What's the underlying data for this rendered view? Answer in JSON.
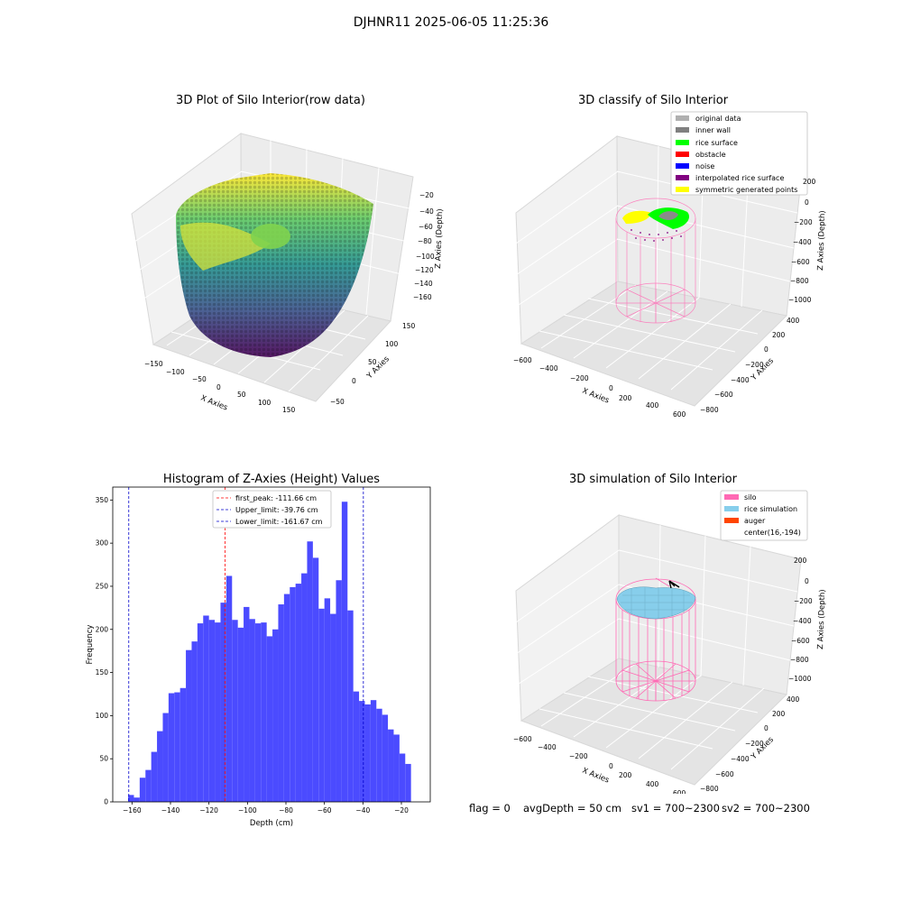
{
  "figure_title": "DJHNR11 2025-06-05 11:25:36",
  "footer": {
    "flag": "flag = 0",
    "avg_depth": "avgDepth = 50 cm",
    "sv1": "sv1 = 700~2300",
    "sv2": "sv2 = 700~2300"
  },
  "colors": {
    "histogram_bar": "#4b4bff",
    "silo": "#ff69b4",
    "rice_simulation": "#87ceeb",
    "rice_surface": "#00ff00",
    "symmetric": "#ffff00"
  },
  "chart_data": [
    {
      "type": "scatter3d",
      "title": "3D Plot of Silo Interior(row data)",
      "xlabel": "X Axies",
      "ylabel": "Y Axies",
      "zlabel": "Z Axies (Depth)",
      "xticks": [
        "−150",
        "−100",
        "−50",
        "0",
        "50",
        "100",
        "150"
      ],
      "yticks": [
        "−50",
        "0",
        "50",
        "100",
        "150"
      ],
      "zticks": [
        "−20",
        "−40",
        "−60",
        "−80",
        "−100",
        "−120",
        "−140",
        "−160"
      ],
      "colormap": "viridis"
    },
    {
      "type": "scatter3d",
      "title": "3D classify of Silo Interior",
      "xlabel": "X Axies",
      "ylabel": "Y Axies",
      "zlabel": "Z Axies (Depth)",
      "xticks": [
        "−600",
        "−400",
        "−200",
        "0",
        "200",
        "400",
        "600"
      ],
      "yticks": [
        "−800",
        "−600",
        "−400",
        "−200",
        "0",
        "200",
        "400"
      ],
      "zticks": [
        "200",
        "0",
        "−200",
        "−400",
        "−600",
        "−800",
        "−1000"
      ],
      "legend": [
        {
          "label": "original data",
          "color": "#b0b0b0"
        },
        {
          "label": "inner wall",
          "color": "#808080"
        },
        {
          "label": "rice surface",
          "color": "#00ff00"
        },
        {
          "label": "obstacle",
          "color": "#ff0000"
        },
        {
          "label": "noise",
          "color": "#0000ff"
        },
        {
          "label": "interpolated rice surface",
          "color": "#800080"
        },
        {
          "label": "symmetric generated points",
          "color": "#ffff00"
        }
      ],
      "legend_position": "top-right"
    },
    {
      "type": "bar",
      "title": "Histogram of Z-Axies (Height) Values",
      "xlabel": "Depth (cm)",
      "ylabel": "Frequency",
      "xlim": [
        -170,
        -5
      ],
      "ylim": [
        0,
        365
      ],
      "xticks": [
        -160,
        -140,
        -120,
        -100,
        -80,
        -60,
        -40,
        -20
      ],
      "yticks": [
        0,
        50,
        100,
        150,
        200,
        250,
        300,
        350
      ],
      "bin_start": -162,
      "bin_width": 3,
      "values": [
        8,
        5,
        28,
        37,
        58,
        82,
        103,
        126,
        127,
        132,
        176,
        186,
        207,
        216,
        211,
        208,
        231,
        262,
        211,
        202,
        226,
        212,
        207,
        208,
        192,
        200,
        229,
        241,
        249,
        253,
        265,
        302,
        283,
        224,
        236,
        218,
        257,
        348,
        222,
        128,
        117,
        113,
        118,
        108,
        101,
        84,
        78,
        56,
        44
      ],
      "vlines": [
        {
          "label": "first_peak: -111.66 cm",
          "x": -111.66,
          "color": "#ff0000"
        },
        {
          "label": "Upper_limit: -39.76 cm",
          "x": -39.76,
          "color": "#0000cc"
        },
        {
          "label": "Lower_limit: -161.67 cm",
          "x": -161.67,
          "color": "#0000cc"
        }
      ],
      "legend_position": "top-center"
    },
    {
      "type": "surface3d",
      "title": "3D simulation of Silo Interior",
      "xlabel": "X Axies",
      "ylabel": "Y Axies",
      "zlabel": "Z Axies (Depth)",
      "xticks": [
        "−600",
        "−400",
        "−200",
        "0",
        "200",
        "400",
        "600"
      ],
      "yticks": [
        "−800",
        "−600",
        "−400",
        "−200",
        "0",
        "200",
        "400"
      ],
      "zticks": [
        "200",
        "0",
        "−200",
        "−400",
        "−600",
        "−800",
        "−1000"
      ],
      "legend": [
        {
          "label": "silo",
          "color": "#ff69b4"
        },
        {
          "label": "rice simulation",
          "color": "#87ceeb"
        },
        {
          "label": "auger",
          "color": "#ff4500"
        },
        {
          "label": "center(16,-194)",
          "color": ""
        }
      ],
      "legend_position": "top-right"
    }
  ]
}
